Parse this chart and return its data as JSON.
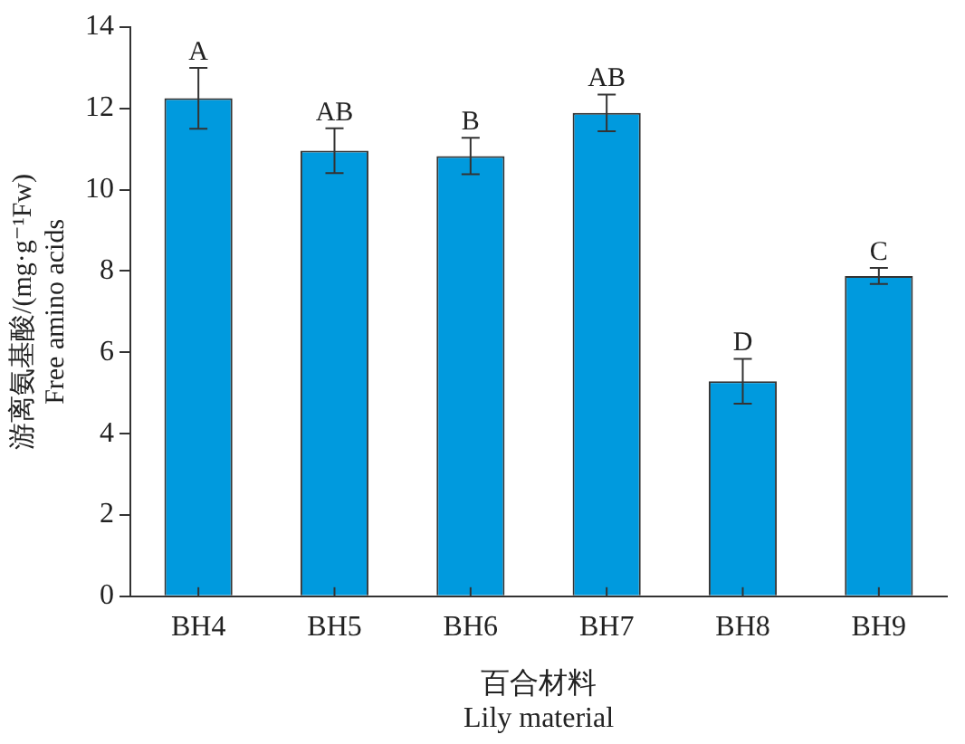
{
  "chart_data": {
    "type": "bar",
    "xlabel": [
      "百合材料",
      "Lily material"
    ],
    "ylabel": [
      "游离氨基酸/(mg·g⁻¹Fw)",
      "Free amino acids"
    ],
    "categories": [
      "BH4",
      "BH5",
      "BH6",
      "BH7",
      "BH8",
      "BH9"
    ],
    "values": [
      12.25,
      10.96,
      10.83,
      11.89,
      5.29,
      7.88
    ],
    "errors": [
      0.75,
      0.55,
      0.45,
      0.45,
      0.55,
      0.2
    ],
    "color": "#009ade",
    "ylim": [
      0,
      14
    ],
    "yticks": [
      0,
      2,
      4,
      6,
      8,
      10,
      12,
      14
    ],
    "grid": false,
    "legend": false,
    "annotations": [
      {
        "text": "A",
        "x": "BH4",
        "y": 13.0
      },
      {
        "text": "AB",
        "x": "BH5",
        "y": 11.51
      },
      {
        "text": "B",
        "x": "BH6",
        "y": 11.28
      },
      {
        "text": "AB",
        "x": "BH7",
        "y": 12.34
      },
      {
        "text": "D",
        "x": "BH8",
        "y": 5.84
      },
      {
        "text": "C",
        "x": "BH9",
        "y": 8.08
      }
    ]
  }
}
